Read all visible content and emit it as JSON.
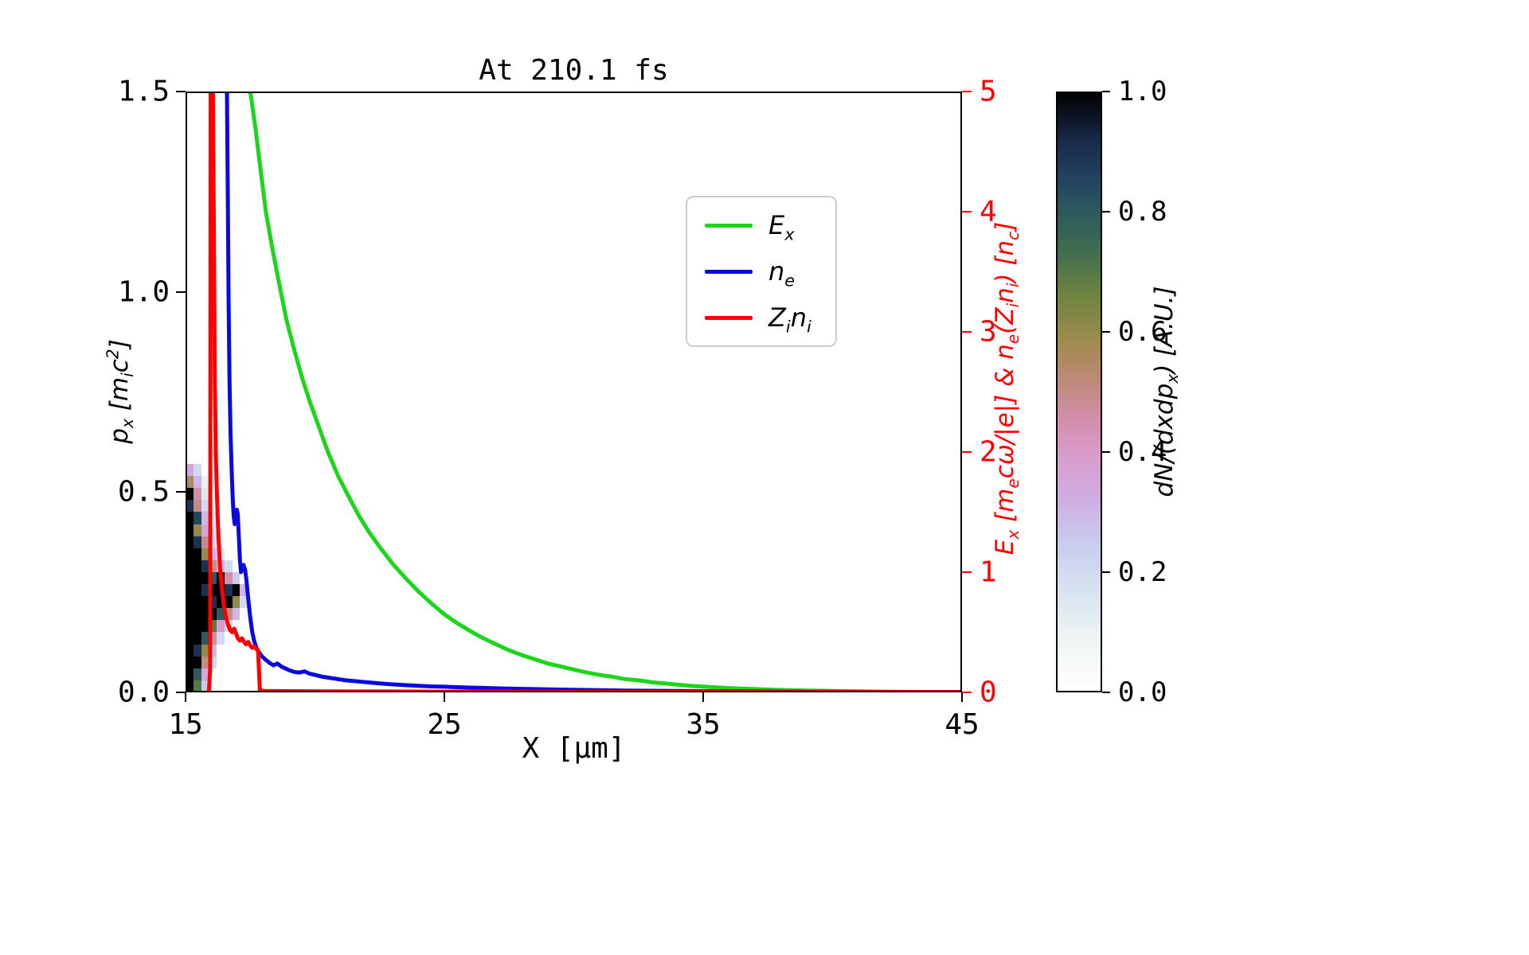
{
  "chart_data": {
    "type": "line+heatmap",
    "title": "At 210.1 fs",
    "x_axis": {
      "label": "X [μm]",
      "min": 15,
      "max": 45,
      "tick_values": [
        15,
        25,
        35,
        45
      ],
      "tick_labels": [
        "15",
        "25",
        "35",
        "45"
      ]
    },
    "y_left": {
      "label": "p_x [m_ic^2]",
      "min": 0.0,
      "max": 1.5,
      "tick_values": [
        0.0,
        0.5,
        1.0,
        1.5
      ],
      "tick_labels": [
        "0.0",
        "0.5",
        "1.0",
        "1.5"
      ],
      "color": "#000000"
    },
    "y_right": {
      "label": "E_x [m_ecω/|e|] & n_e(Z_in_i) [n_c]",
      "min": 0,
      "max": 5,
      "tick_values": [
        0,
        1,
        2,
        3,
        4,
        5
      ],
      "tick_labels": [
        "0",
        "1",
        "2",
        "3",
        "4",
        "5"
      ],
      "color": "#ff0000"
    },
    "spine_color": "#000000",
    "background": "#ffffff",
    "series": [
      {
        "name": "Ex",
        "label": "E_x",
        "color": "#1bd61b",
        "axis": "right",
        "points": [
          [
            17.5,
            5
          ],
          [
            17.7,
            4.7
          ],
          [
            17.9,
            4.35
          ],
          [
            18.1,
            4.0
          ],
          [
            18.35,
            3.7
          ],
          [
            18.6,
            3.42
          ],
          [
            18.9,
            3.1
          ],
          [
            19.2,
            2.85
          ],
          [
            19.5,
            2.62
          ],
          [
            19.8,
            2.42
          ],
          [
            20.1,
            2.24
          ],
          [
            20.5,
            2.0
          ],
          [
            20.9,
            1.8
          ],
          [
            21.3,
            1.63
          ],
          [
            21.7,
            1.47
          ],
          [
            22.1,
            1.33
          ],
          [
            22.5,
            1.21
          ],
          [
            23.0,
            1.07
          ],
          [
            23.5,
            0.95
          ],
          [
            24.0,
            0.84
          ],
          [
            24.5,
            0.74
          ],
          [
            25.0,
            0.65
          ],
          [
            25.5,
            0.575
          ],
          [
            26.0,
            0.51
          ],
          [
            26.5,
            0.45
          ],
          [
            27.0,
            0.4
          ],
          [
            27.5,
            0.35
          ],
          [
            28.0,
            0.31
          ],
          [
            28.5,
            0.275
          ],
          [
            29.0,
            0.24
          ],
          [
            29.5,
            0.215
          ],
          [
            30.0,
            0.19
          ],
          [
            30.5,
            0.165
          ],
          [
            31.0,
            0.145
          ],
          [
            31.5,
            0.13
          ],
          [
            32.0,
            0.11
          ],
          [
            32.5,
            0.1
          ],
          [
            33.0,
            0.085
          ],
          [
            33.5,
            0.075
          ],
          [
            34.0,
            0.065
          ],
          [
            34.5,
            0.055
          ],
          [
            35.0,
            0.048
          ],
          [
            36.0,
            0.036
          ],
          [
            37.0,
            0.027
          ],
          [
            38.0,
            0.02
          ],
          [
            39.0,
            0.015
          ],
          [
            40.0,
            0.011
          ],
          [
            41.0,
            0.008
          ],
          [
            42.0,
            0.006
          ],
          [
            43.0,
            0.004
          ],
          [
            44.0,
            0.003
          ],
          [
            45.0,
            0.002
          ]
        ]
      },
      {
        "name": "ne",
        "label": "n_e",
        "color": "#0a0ae0",
        "axis": "right",
        "points": [
          [
            16.52,
            5
          ],
          [
            16.6,
            5
          ],
          [
            16.63,
            4.2
          ],
          [
            16.66,
            3.3
          ],
          [
            16.7,
            2.6
          ],
          [
            16.74,
            2.15
          ],
          [
            16.78,
            1.85
          ],
          [
            16.82,
            1.62
          ],
          [
            16.86,
            1.47
          ],
          [
            16.9,
            1.4
          ],
          [
            16.94,
            1.44
          ],
          [
            16.98,
            1.52
          ],
          [
            17.02,
            1.48
          ],
          [
            17.06,
            1.3
          ],
          [
            17.1,
            1.1
          ],
          [
            17.14,
            1.0
          ],
          [
            17.18,
            1.02
          ],
          [
            17.24,
            1.06
          ],
          [
            17.3,
            1.02
          ],
          [
            17.36,
            0.92
          ],
          [
            17.42,
            0.78
          ],
          [
            17.5,
            0.62
          ],
          [
            17.58,
            0.5
          ],
          [
            17.66,
            0.42
          ],
          [
            17.74,
            0.37
          ],
          [
            17.85,
            0.33
          ],
          [
            17.95,
            0.3
          ],
          [
            18.1,
            0.27
          ],
          [
            18.25,
            0.245
          ],
          [
            18.4,
            0.225
          ],
          [
            18.55,
            0.24
          ],
          [
            18.7,
            0.215
          ],
          [
            18.85,
            0.2
          ],
          [
            19.0,
            0.185
          ],
          [
            19.2,
            0.17
          ],
          [
            19.4,
            0.165
          ],
          [
            19.6,
            0.175
          ],
          [
            19.8,
            0.155
          ],
          [
            20.0,
            0.145
          ],
          [
            20.3,
            0.13
          ],
          [
            20.6,
            0.12
          ],
          [
            20.9,
            0.11
          ],
          [
            21.2,
            0.1
          ],
          [
            21.5,
            0.095
          ],
          [
            21.8,
            0.088
          ],
          [
            22.2,
            0.08
          ],
          [
            22.6,
            0.073
          ],
          [
            23.0,
            0.066
          ],
          [
            23.5,
            0.06
          ],
          [
            24.0,
            0.054
          ],
          [
            24.5,
            0.05
          ],
          [
            25.0,
            0.047
          ],
          [
            25.5,
            0.043
          ],
          [
            26.0,
            0.04
          ],
          [
            26.5,
            0.037
          ],
          [
            27.0,
            0.034
          ],
          [
            27.5,
            0.031
          ],
          [
            28.0,
            0.029
          ],
          [
            28.5,
            0.027
          ],
          [
            29.0,
            0.025
          ],
          [
            29.5,
            0.023
          ],
          [
            30.0,
            0.021
          ],
          [
            31.0,
            0.018
          ],
          [
            32.0,
            0.015
          ],
          [
            33.0,
            0.013
          ],
          [
            34.0,
            0.011
          ],
          [
            35.0,
            0.009
          ],
          [
            36.0,
            0.008
          ],
          [
            37.0,
            0.007
          ],
          [
            38.0,
            0.006
          ],
          [
            39.0,
            0.005
          ],
          [
            40.0,
            0.0045
          ],
          [
            41.0,
            0.004
          ],
          [
            42.0,
            0.0035
          ],
          [
            43.0,
            0.003
          ],
          [
            44.0,
            0.0028
          ],
          [
            45.0,
            0.0025
          ]
        ]
      },
      {
        "name": "Zini",
        "label": "Z_in_i",
        "color": "#ff0000",
        "axis": "right",
        "points": [
          [
            15.9,
            0.001
          ],
          [
            15.95,
            0.2
          ],
          [
            15.97,
            5
          ],
          [
            16.06,
            5
          ],
          [
            16.1,
            3.6
          ],
          [
            16.13,
            2.6
          ],
          [
            16.17,
            2.0
          ],
          [
            16.22,
            1.6
          ],
          [
            16.27,
            1.3
          ],
          [
            16.33,
            1.05
          ],
          [
            16.4,
            0.88
          ],
          [
            16.47,
            0.74
          ],
          [
            16.55,
            0.64
          ],
          [
            16.63,
            0.57
          ],
          [
            16.72,
            0.52
          ],
          [
            16.8,
            0.5
          ],
          [
            16.88,
            0.53
          ],
          [
            16.95,
            0.49
          ],
          [
            17.02,
            0.45
          ],
          [
            17.1,
            0.43
          ],
          [
            17.18,
            0.45
          ],
          [
            17.26,
            0.42
          ],
          [
            17.34,
            0.4
          ],
          [
            17.42,
            0.42
          ],
          [
            17.5,
            0.39
          ],
          [
            17.58,
            0.37
          ],
          [
            17.66,
            0.38
          ],
          [
            17.74,
            0.36
          ],
          [
            17.8,
            0.35
          ],
          [
            17.84,
            0.18
          ],
          [
            17.87,
            0.02
          ],
          [
            18.0,
            0.012
          ],
          [
            19.0,
            0.01
          ],
          [
            20.0,
            0.008
          ],
          [
            22.0,
            0.007
          ],
          [
            25.0,
            0.006
          ],
          [
            28.0,
            0.005
          ],
          [
            32.0,
            0.004
          ],
          [
            36.0,
            0.004
          ],
          [
            40.0,
            0.003
          ],
          [
            45.0,
            0.003
          ]
        ]
      }
    ],
    "heatmap": {
      "x_start": 15.0,
      "x_step": 0.3,
      "p_start": 0.57,
      "p_step": 0.03,
      "values": [
        [
          0.35,
          0.2,
          0,
          0,
          0,
          0,
          0,
          0
        ],
        [
          0.55,
          0.3,
          0.1,
          0,
          0,
          0,
          0,
          0
        ],
        [
          1,
          0.45,
          0.15,
          0,
          0,
          0,
          0,
          0
        ],
        [
          0.9,
          0.5,
          0.2,
          0,
          0,
          0,
          0,
          0
        ],
        [
          1,
          0.85,
          0.3,
          0.1,
          0,
          0,
          0,
          0
        ],
        [
          1,
          0.6,
          0.35,
          0.15,
          0,
          0,
          0,
          0
        ],
        [
          1,
          0.9,
          0.5,
          0.2,
          0,
          0,
          0,
          0
        ],
        [
          1,
          1,
          0.6,
          0.3,
          0.15,
          0,
          0,
          0
        ],
        [
          1,
          1,
          0.9,
          0.5,
          0.3,
          0.2,
          0,
          0
        ],
        [
          1,
          1,
          1,
          0.8,
          1,
          0.45,
          0.25,
          0
        ],
        [
          1,
          1,
          0.9,
          1,
          1,
          0.9,
          1,
          0.3
        ],
        [
          1,
          1,
          1,
          0.9,
          1,
          1,
          0.6,
          0.2
        ],
        [
          1,
          1,
          1,
          1,
          0.8,
          0.5,
          0.3,
          0
        ],
        [
          1,
          1,
          1,
          0.7,
          0.4,
          0.2,
          0,
          0
        ],
        [
          1,
          1,
          0.8,
          0.45,
          0.2,
          0,
          0,
          0
        ],
        [
          1,
          0.9,
          0.6,
          0.3,
          0,
          0,
          0,
          0
        ],
        [
          1,
          1,
          0.5,
          0.2,
          0,
          0,
          0,
          0
        ],
        [
          1,
          0.8,
          0.35,
          0,
          0,
          0,
          0,
          0
        ],
        [
          1,
          0.7,
          0.25,
          0,
          0,
          0,
          0,
          0
        ]
      ]
    },
    "colorbar": {
      "label": "dN/(dxdp_x) [A.U.]",
      "min": 0.0,
      "max": 1.0,
      "tick_values": [
        1.0,
        0.8,
        0.6,
        0.4,
        0.2,
        0.0
      ],
      "tick_labels": [
        "1.0",
        "0.8",
        "0.6",
        "0.4",
        "0.2",
        "0.0"
      ],
      "stops": [
        [
          0.0,
          "#ffffff"
        ],
        [
          0.08,
          "#f0f6f3"
        ],
        [
          0.16,
          "#d9e5f1"
        ],
        [
          0.24,
          "#c9ceee"
        ],
        [
          0.32,
          "#cfaee3"
        ],
        [
          0.4,
          "#d99bc9"
        ],
        [
          0.46,
          "#d18da6"
        ],
        [
          0.52,
          "#bd8a78"
        ],
        [
          0.58,
          "#a18b50"
        ],
        [
          0.66,
          "#6f8540"
        ],
        [
          0.74,
          "#3f6b4f"
        ],
        [
          0.8,
          "#2d5a5e"
        ],
        [
          0.86,
          "#23415f"
        ],
        [
          0.92,
          "#192a49"
        ],
        [
          0.96,
          "#0d1526"
        ],
        [
          1.0,
          "#000000"
        ]
      ]
    }
  }
}
